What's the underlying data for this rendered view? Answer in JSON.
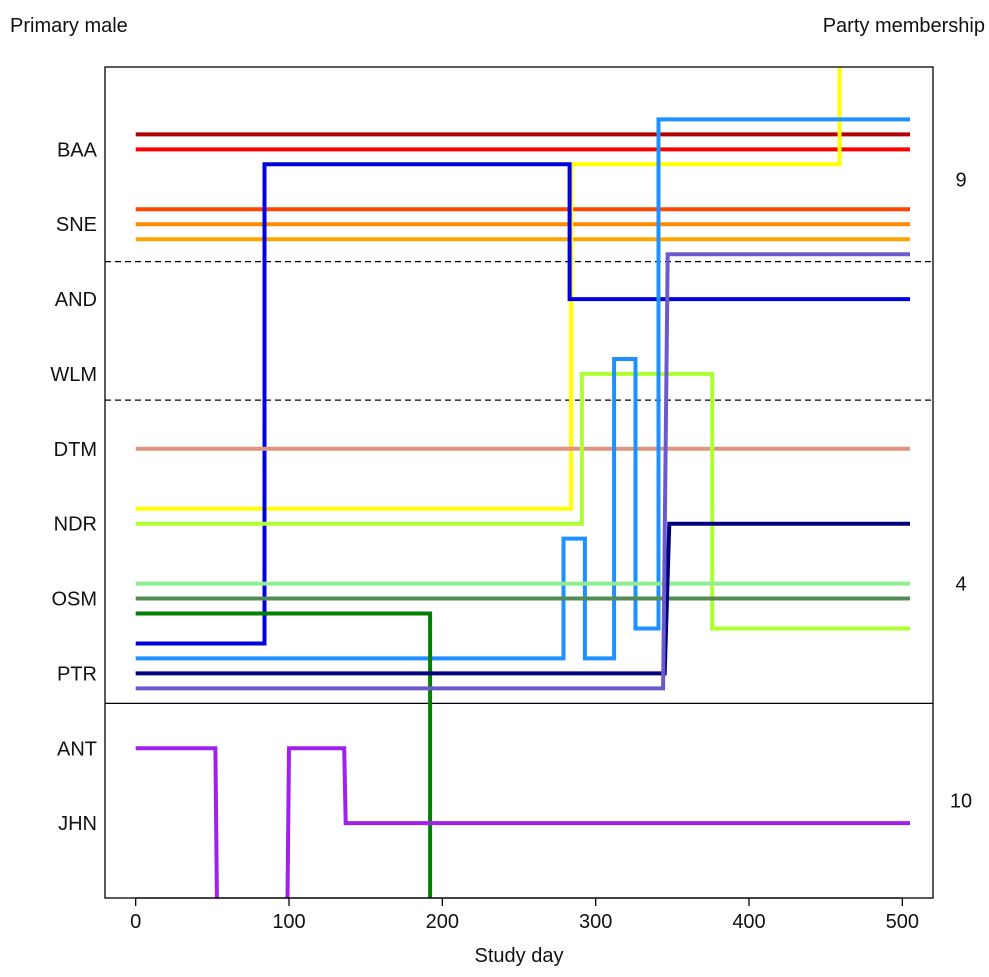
{
  "chart_data": {
    "type": "line",
    "left_header": "Primary male",
    "right_header": "Party membership",
    "xlabel": "Study day",
    "xlim": [
      -20,
      520
    ],
    "xticks": [
      0,
      100,
      200,
      300,
      400,
      500
    ],
    "xtick_labels": [
      "0",
      "100",
      "200",
      "300",
      "400",
      "500"
    ],
    "ylim": [
      -0.5,
      10.6
    ],
    "y_labels": [
      {
        "label": "BAA",
        "y": 9.5
      },
      {
        "label": "SNE",
        "y": 8.5
      },
      {
        "label": "AND",
        "y": 7.5
      },
      {
        "label": "WLM",
        "y": 6.5
      },
      {
        "label": "DTM",
        "y": 5.5
      },
      {
        "label": "NDR",
        "y": 4.5
      },
      {
        "label": "OSM",
        "y": 3.5
      },
      {
        "label": "PTR",
        "y": 2.5
      },
      {
        "label": "ANT",
        "y": 1.5
      },
      {
        "label": "JHN",
        "y": 0.5
      }
    ],
    "party_labels": [
      {
        "label": "9",
        "y": 9.1
      },
      {
        "label": "4",
        "y": 3.7
      },
      {
        "label": "10",
        "y": 0.8
      }
    ],
    "separators": [
      {
        "y": 8.0,
        "style": "dashed"
      },
      {
        "y": 6.15,
        "style": "dashed"
      },
      {
        "y": 2.1,
        "style": "solid"
      }
    ],
    "series": [
      {
        "color": "#b30000",
        "points": [
          [
            0,
            9.7
          ],
          [
            505,
            9.7
          ]
        ]
      },
      {
        "color": "#ff0000",
        "points": [
          [
            0,
            9.5
          ],
          [
            505,
            9.5
          ]
        ]
      },
      {
        "color": "#ff4500",
        "points": [
          [
            0,
            8.7
          ],
          [
            505,
            8.7
          ]
        ]
      },
      {
        "color": "#ff8c00",
        "points": [
          [
            0,
            8.5
          ],
          [
            505,
            8.5
          ]
        ]
      },
      {
        "color": "#ffa500",
        "points": [
          [
            0,
            8.3
          ],
          [
            505,
            8.3
          ]
        ]
      },
      {
        "color": "#ffff00",
        "points": [
          [
            0,
            4.7
          ],
          [
            284,
            4.7
          ],
          [
            284,
            9.3
          ],
          [
            459,
            9.3
          ],
          [
            459,
            10.6
          ]
        ]
      },
      {
        "color": "#0000dd",
        "points": [
          [
            0,
            2.9
          ],
          [
            84,
            2.9
          ],
          [
            84,
            9.3
          ],
          [
            283,
            9.3
          ],
          [
            283,
            7.5
          ],
          [
            505,
            7.5
          ]
        ]
      },
      {
        "color": "#e0967e",
        "points": [
          [
            0,
            5.5
          ],
          [
            505,
            5.5
          ]
        ]
      },
      {
        "color": "#adff2f",
        "points": [
          [
            0,
            4.5
          ],
          [
            291,
            4.5
          ],
          [
            291,
            6.5
          ],
          [
            376,
            6.5
          ],
          [
            376,
            3.1
          ],
          [
            505,
            3.1
          ]
        ]
      },
      {
        "color": "#1e90ff",
        "points": [
          [
            0,
            2.7
          ],
          [
            279,
            2.7
          ],
          [
            279,
            4.3
          ],
          [
            293,
            4.3
          ],
          [
            293,
            2.7
          ],
          [
            312,
            2.7
          ],
          [
            312,
            6.7
          ],
          [
            326,
            6.7
          ],
          [
            326,
            3.1
          ],
          [
            341,
            3.1
          ],
          [
            341,
            9.9
          ],
          [
            505,
            9.9
          ]
        ]
      },
      {
        "color": "#90ee90",
        "points": [
          [
            0,
            3.7
          ],
          [
            505,
            3.7
          ]
        ]
      },
      {
        "color": "#548b54",
        "points": [
          [
            0,
            3.5
          ],
          [
            505,
            3.5
          ]
        ]
      },
      {
        "color": "#008000",
        "points": [
          [
            0,
            3.3
          ],
          [
            192,
            3.3
          ],
          [
            192,
            -0.5
          ]
        ]
      },
      {
        "color": "#00007f",
        "points": [
          [
            0,
            2.5
          ],
          [
            345,
            2.5
          ],
          [
            348,
            4.5
          ],
          [
            505,
            4.5
          ]
        ]
      },
      {
        "color": "#6a5acd",
        "points": [
          [
            0,
            2.3
          ],
          [
            344,
            2.3
          ],
          [
            347,
            8.1
          ],
          [
            505,
            8.1
          ]
        ]
      },
      {
        "color": "#a020f0",
        "points": [
          [
            0,
            1.5
          ],
          [
            52,
            1.5
          ],
          [
            53,
            -0.5
          ]
        ]
      },
      {
        "color": "#a020f0",
        "points": [
          [
            99,
            -0.5
          ],
          [
            100,
            1.5
          ],
          [
            136,
            1.5
          ],
          [
            137,
            0.5
          ],
          [
            505,
            0.5
          ]
        ]
      }
    ]
  }
}
